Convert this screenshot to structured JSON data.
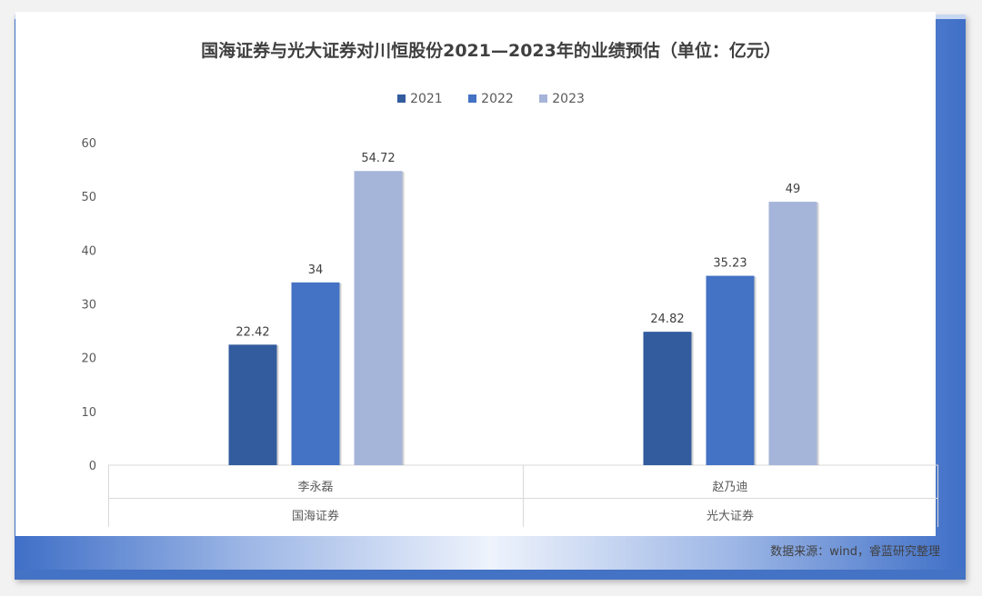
{
  "chart_data": {
    "type": "bar",
    "title": "国海证券与光大证券对川恒股份2021—2023年的业绩预估（单位：亿元）",
    "categories": [
      "李永磊",
      "赵乃迪"
    ],
    "groups": [
      "国海证券",
      "光大证券"
    ],
    "series": [
      {
        "name": "2021",
        "values": [
          22.42,
          24.82
        ],
        "color": "#335c9e"
      },
      {
        "name": "2022",
        "values": [
          34,
          35.23
        ],
        "color": "#4472c4"
      },
      {
        "name": "2023",
        "values": [
          54.72,
          49
        ],
        "color": "#a5b4d9"
      }
    ],
    "data_labels": [
      [
        "22.42",
        "24.82"
      ],
      [
        "34",
        "35.23"
      ],
      [
        "54.72",
        "49"
      ]
    ],
    "yticks": [
      0,
      10,
      20,
      30,
      40,
      50,
      60
    ],
    "ylim": [
      0,
      60
    ],
    "grid": false,
    "legend_position": "top"
  },
  "source_note": "数据来源：wind，睿蓝研究整理",
  "colors": {
    "frame_accent": "#4472c4",
    "text": "#404040",
    "axis": "#d9d9d9"
  }
}
